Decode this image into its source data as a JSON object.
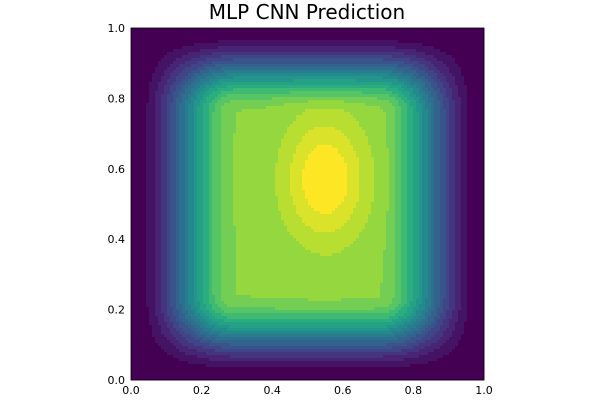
{
  "chart_data": {
    "type": "contour",
    "title": "MLP CNN Prediction",
    "xlabel": "",
    "ylabel": "",
    "xlim": [
      0.0,
      1.0
    ],
    "ylim": [
      0.0,
      1.0
    ],
    "x_ticks": [
      "0.0",
      "0.2",
      "0.4",
      "0.6",
      "0.8",
      "1.0"
    ],
    "y_ticks": [
      "0.0",
      "0.2",
      "0.4",
      "0.6",
      "0.8",
      "1.0"
    ],
    "grid": false,
    "legend": "none",
    "colormap": "viridis",
    "levels": 20,
    "field_description": "Plateau-shaped field that is near zero at the square boundary and rises toward a maximum in the center; the peak region is elongated vertically around x≈0.55, spanning roughly y≈0.35–0.78.",
    "colors": {
      "low": "#440154",
      "high": "#fde725"
    }
  }
}
